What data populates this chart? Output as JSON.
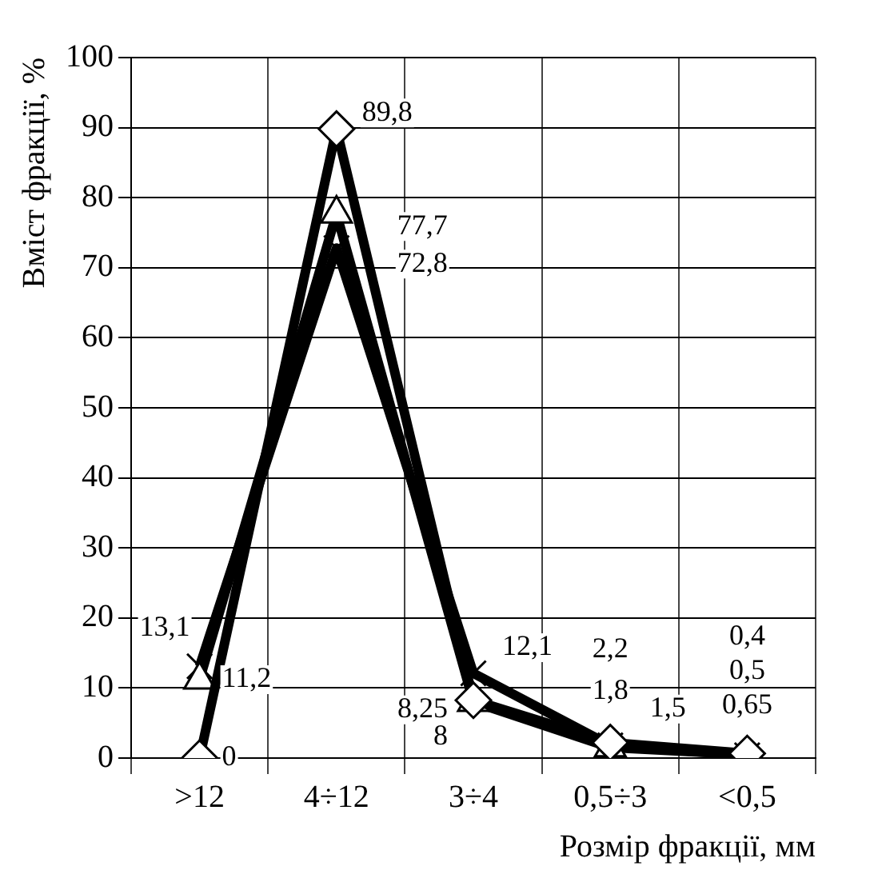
{
  "chart_data": {
    "type": "line",
    "xlabel": "Розмір фракції, мм",
    "ylabel": "Вміст фракції, %",
    "categories": [
      ">12",
      "4÷12",
      "3÷4",
      "0,5÷3",
      "<0,5"
    ],
    "series": [
      {
        "color": "#000000",
        "marker": "diamond",
        "values": [
          0,
          89.8,
          8.25,
          2.2,
          0.65
        ],
        "value_labels": [
          "0",
          "89,8",
          "8,25",
          "2,2",
          "0,65"
        ]
      },
      {
        "color": "#000000",
        "marker": "triangle",
        "values": [
          11.2,
          77.7,
          8,
          1.5,
          0.5
        ],
        "value_labels": [
          "11,2",
          "77,7",
          "8",
          "1,5",
          "0,5"
        ]
      },
      {
        "color": "#000000",
        "marker": "cross",
        "values": [
          13.1,
          72.8,
          12.1,
          1.8,
          0.4
        ],
        "value_labels": [
          "13,1",
          "72,8",
          "12,1",
          "1,8",
          "0,4"
        ]
      }
    ],
    "ylim": [
      0,
      100
    ],
    "yticks": [
      0,
      10,
      20,
      30,
      40,
      50,
      60,
      70,
      80,
      90,
      100
    ],
    "grid": true,
    "legend": false
  }
}
